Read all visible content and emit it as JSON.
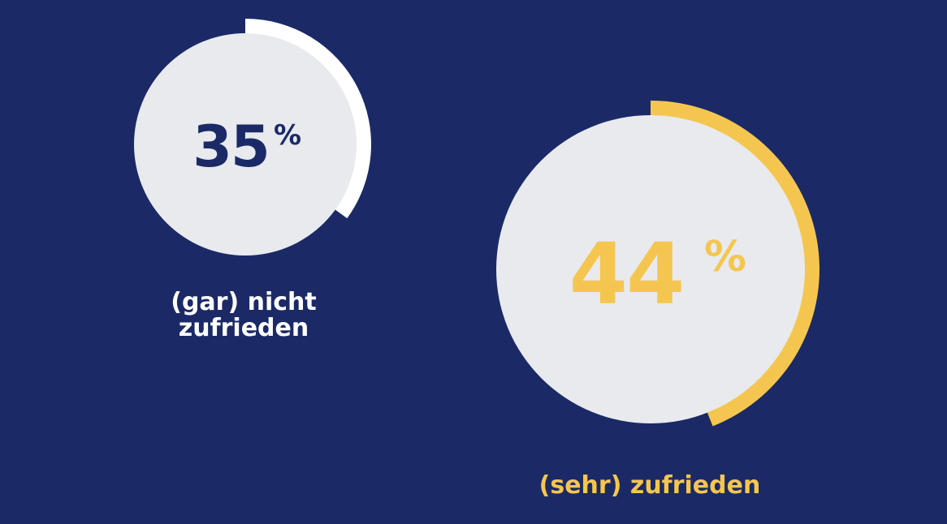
{
  "chart_data": {
    "type": "pie",
    "items": [
      {
        "value": 35,
        "unit": "%",
        "label_line1": "(gar) nicht",
        "label_line2": "zufrieden",
        "color": "#ffffff",
        "text_color": "#1b2a66"
      },
      {
        "value": 44,
        "unit": "%",
        "label_line1": "(sehr) zufrieden",
        "label_line2": "",
        "color": "#f5c64f",
        "text_color": "#f5c64f"
      }
    ]
  },
  "colors": {
    "background": "#1b2a66",
    "disc": "#e8eaee"
  }
}
